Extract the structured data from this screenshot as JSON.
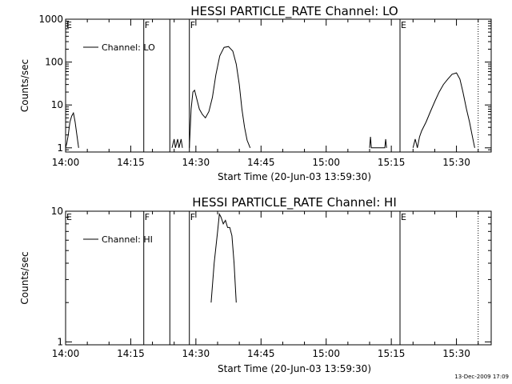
{
  "footer": {
    "stamp": "13-Dec-2009 17:09"
  },
  "chart_data": [
    {
      "type": "line",
      "title": "HESSI PARTICLE_RATE Channel: LO",
      "xlabel": "Start Time (20-Jun-03 13:59:30)",
      "ylabel": "Counts/sec",
      "yscale": "log",
      "xlim": [
        "14:00",
        "15:38"
      ],
      "ylim": [
        0.8,
        1000
      ],
      "x_ticks": [
        "14:00",
        "14:15",
        "14:30",
        "14:45",
        "15:00",
        "15:15",
        "15:30"
      ],
      "y_ticks": [
        "1",
        "10",
        "100",
        "1000"
      ],
      "legend": {
        "label": "Channel: LO",
        "position": "top-left"
      },
      "grid": false,
      "markers": [
        {
          "time": "14:00",
          "label": "E",
          "style": "solid"
        },
        {
          "time": "14:18",
          "label": "F",
          "style": "solid"
        },
        {
          "time": "14:24",
          "label": "",
          "style": "solid"
        },
        {
          "time": "14:28.5",
          "label": "F",
          "style": "solid"
        },
        {
          "time": "15:17",
          "label": "E",
          "style": "solid"
        },
        {
          "time": "15:35",
          "label": "",
          "style": "dotted"
        }
      ],
      "series": [
        {
          "name": "Channel: LO",
          "points": [
            [
              "14:00",
              1
            ],
            [
              "14:00.3",
              1.3
            ],
            [
              "14:00.6",
              2
            ],
            [
              "14:01",
              4
            ],
            [
              "14:01.4",
              5.5
            ],
            [
              "14:01.8",
              6.5
            ],
            [
              "14:02.2",
              4
            ],
            [
              "14:02.6",
              2
            ],
            [
              "14:03",
              1
            ]
          ]
        },
        {
          "name": "",
          "points": [
            [
              "14:24.5",
              1
            ],
            [
              "14:25",
              1.6
            ],
            [
              "14:25.3",
              1
            ],
            [
              "14:25.8",
              1.6
            ],
            [
              "14:26.1",
              1
            ],
            [
              "14:26.6",
              1.6
            ],
            [
              "14:26.9",
              1
            ]
          ]
        },
        {
          "name": "",
          "points": [
            [
              "14:28.5",
              1
            ],
            [
              "14:28.9",
              8
            ],
            [
              "14:29.3",
              20
            ],
            [
              "14:29.7",
              22
            ],
            [
              "14:30.2",
              14
            ],
            [
              "14:30.8",
              8
            ],
            [
              "14:31.5",
              6
            ],
            [
              "14:32.2",
              5
            ],
            [
              "14:33",
              7
            ],
            [
              "14:33.8",
              15
            ],
            [
              "14:34.6",
              50
            ],
            [
              "14:35.5",
              140
            ],
            [
              "14:36.5",
              220
            ],
            [
              "14:37.5",
              230
            ],
            [
              "14:38.5",
              180
            ],
            [
              "14:39.3",
              90
            ],
            [
              "14:40",
              30
            ],
            [
              "14:40.6",
              8
            ],
            [
              "14:41.2",
              3
            ],
            [
              "14:41.8",
              1.5
            ],
            [
              "14:42.5",
              1
            ]
          ]
        },
        {
          "name": "",
          "points": [
            [
              "15:10",
              1
            ],
            [
              "15:10.2",
              1.8
            ],
            [
              "15:10.4",
              1
            ],
            [
              "15:13.5",
              1
            ],
            [
              "15:13.7",
              1.6
            ],
            [
              "15:13.9",
              1
            ]
          ]
        },
        {
          "name": "",
          "points": [
            [
              "15:20",
              1
            ],
            [
              "15:20.5",
              1.6
            ],
            [
              "15:21",
              1
            ],
            [
              "15:21.5",
              1.8
            ],
            [
              "15:22",
              2.5
            ],
            [
              "15:23",
              4
            ],
            [
              "15:24",
              7
            ],
            [
              "15:25",
              12
            ],
            [
              "15:26",
              20
            ],
            [
              "15:27",
              30
            ],
            [
              "15:28",
              40
            ],
            [
              "15:29",
              52
            ],
            [
              "15:30",
              56
            ],
            [
              "15:30.8",
              40
            ],
            [
              "15:31.5",
              20
            ],
            [
              "15:32.3",
              8
            ],
            [
              "15:33",
              4
            ],
            [
              "15:33.6",
              2
            ],
            [
              "15:34.2",
              1
            ]
          ]
        }
      ]
    },
    {
      "type": "line",
      "title": "HESSI PARTICLE_RATE Channel: HI",
      "xlabel": "Start Time (20-Jun-03 13:59:30)",
      "ylabel": "Counts/sec",
      "yscale": "log",
      "xlim": [
        "14:00",
        "15:38"
      ],
      "ylim": [
        0.95,
        10
      ],
      "x_ticks": [
        "14:00",
        "14:15",
        "14:30",
        "14:45",
        "15:00",
        "15:15",
        "15:30"
      ],
      "y_ticks": [
        "1",
        "10"
      ],
      "legend": {
        "label": "Channel: HI",
        "position": "top-left"
      },
      "grid": false,
      "markers": [
        {
          "time": "14:00",
          "label": "E",
          "style": "solid"
        },
        {
          "time": "14:18",
          "label": "F",
          "style": "solid"
        },
        {
          "time": "14:24",
          "label": "",
          "style": "solid"
        },
        {
          "time": "14:28.5",
          "label": "F",
          "style": "solid"
        },
        {
          "time": "15:17",
          "label": "E",
          "style": "solid"
        },
        {
          "time": "15:35",
          "label": "",
          "style": "dotted"
        }
      ],
      "series": [
        {
          "name": "Channel: HI",
          "points": [
            [
              "14:33.5",
              2
            ],
            [
              "14:34.2",
              4
            ],
            [
              "14:35",
              7
            ],
            [
              "14:35.4",
              9.5
            ],
            [
              "14:35.8",
              9
            ],
            [
              "14:36.3",
              8
            ],
            [
              "14:36.8",
              8.5
            ],
            [
              "14:37.3",
              7.5
            ],
            [
              "14:37.8",
              7.5
            ],
            [
              "14:38.3",
              6.5
            ],
            [
              "14:38.8",
              4
            ],
            [
              "14:39.3",
              2
            ]
          ]
        }
      ]
    }
  ]
}
